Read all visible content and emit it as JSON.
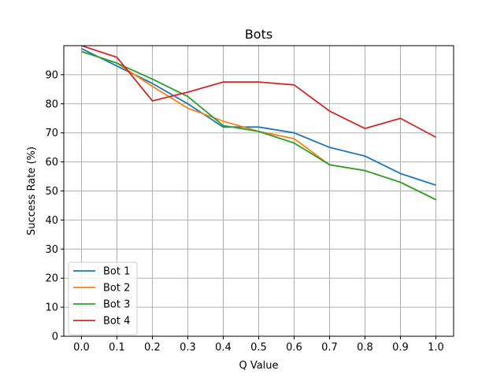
{
  "chart_data": {
    "type": "line",
    "title": "Bots",
    "xlabel": "Q Value",
    "ylabel": "Success Rate (%)",
    "x": [
      0.0,
      0.1,
      0.2,
      0.3,
      0.4,
      0.5,
      0.6,
      0.7,
      0.8,
      0.9,
      1.0
    ],
    "x_tick_labels": [
      "0.0",
      "0.1",
      "0.2",
      "0.3",
      "0.4",
      "0.5",
      "0.6",
      "0.7",
      "0.8",
      "0.9",
      "1.0"
    ],
    "y_ticks": [
      0,
      10,
      20,
      30,
      40,
      50,
      60,
      70,
      80,
      90
    ],
    "y_tick_labels": [
      "0",
      "10",
      "20",
      "30",
      "40",
      "50",
      "60",
      "70",
      "80",
      "90"
    ],
    "xlim": [
      -0.05,
      1.05
    ],
    "ylim": [
      0,
      100
    ],
    "grid": true,
    "legend_position": "lower-left",
    "series": [
      {
        "name": "Bot 1",
        "color": "#1f77b4",
        "values": [
          99,
          93,
          87,
          80,
          72,
          72,
          70,
          65,
          62,
          56,
          52
        ]
      },
      {
        "name": "Bot 2",
        "color": "#ff7f0e",
        "values": [
          98,
          94,
          86,
          78.5,
          74,
          70.5,
          68,
          59,
          57,
          53,
          47
        ]
      },
      {
        "name": "Bot 3",
        "color": "#2ca02c",
        "values": [
          98,
          94,
          88.5,
          82.5,
          72.5,
          70.5,
          66.5,
          59,
          57,
          53,
          47
        ]
      },
      {
        "name": "Bot 4",
        "color": "#d62728",
        "values": [
          100,
          96,
          81,
          84,
          87.5,
          87.5,
          86.5,
          77.5,
          71.5,
          75,
          68.5
        ]
      }
    ]
  }
}
